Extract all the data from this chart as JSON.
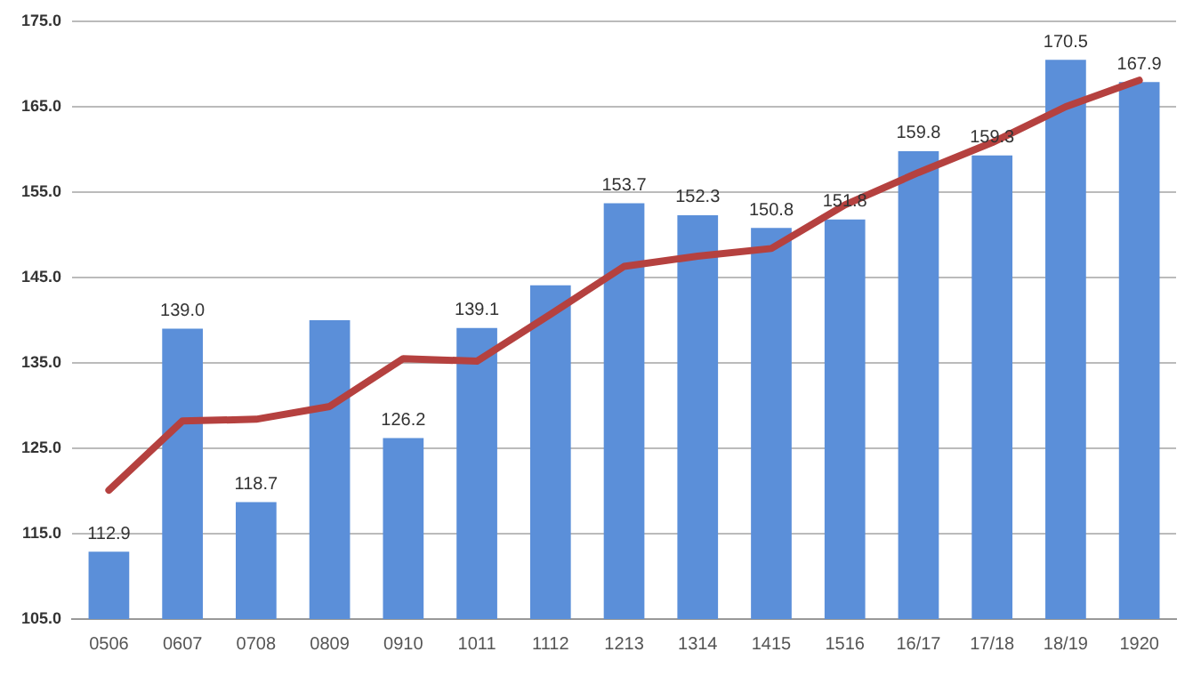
{
  "chart_data": {
    "type": "bar",
    "categories": [
      "0506",
      "0607",
      "0708",
      "0809",
      "0910",
      "1011",
      "1112",
      "1213",
      "1314",
      "1415",
      "1516",
      "16/17",
      "17/18",
      "18/19",
      "1920"
    ],
    "series": [
      {
        "color": "#5b8fd9",
        "values": [
          112.9,
          139.0,
          118.7,
          140.0,
          126.2,
          139.1,
          144.1,
          153.7,
          152.3,
          150.8,
          151.8,
          159.8,
          159.3,
          170.5,
          167.9
        ],
        "value_labels": [
          "112.9",
          "139.0",
          "118.7",
          null,
          "126.2",
          "139.1",
          null,
          "153.7",
          "152.3",
          "150.8",
          "151.8",
          "159.8",
          "159.3",
          "170.5",
          "167.9"
        ]
      },
      {
        "type": "line",
        "color": "#b5413f",
        "values": [
          120.1,
          128.2,
          128.4,
          129.9,
          135.5,
          135.2,
          140.7,
          146.3,
          147.5,
          148.4,
          153.5,
          157.3,
          160.8,
          165.0,
          168.1
        ]
      }
    ],
    "ylim": [
      105,
      175
    ],
    "yticks": [
      {
        "value": 105,
        "label": "105.0"
      },
      {
        "value": 115,
        "label": "115.0"
      },
      {
        "value": 125,
        "label": "125.0"
      },
      {
        "value": 135,
        "label": "135.0"
      },
      {
        "value": 145,
        "label": "145.0"
      },
      {
        "value": 155,
        "label": "155.0"
      },
      {
        "value": 165,
        "label": "165.0"
      },
      {
        "value": 175,
        "label": "175.0"
      }
    ],
    "grid": "y",
    "legend": false,
    "marker": "none",
    "line_style": "solid"
  }
}
